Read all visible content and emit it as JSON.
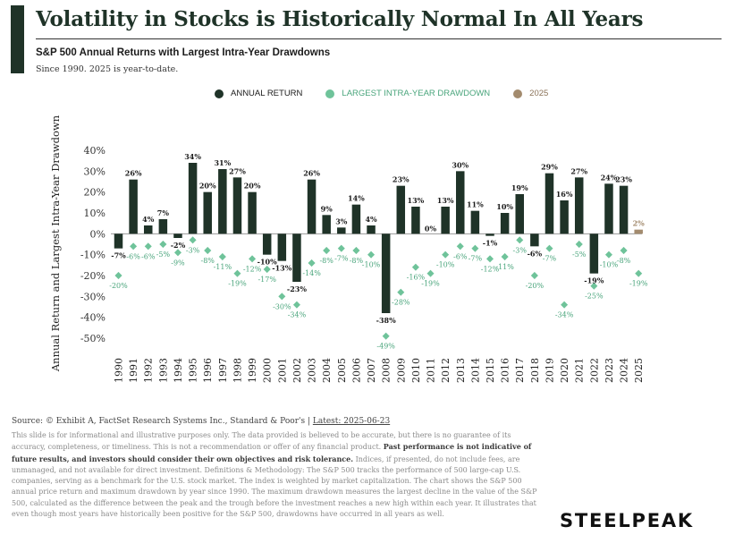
{
  "header": {
    "title": "Volatility in Stocks is Historically Normal In All Years",
    "subtitle": "S&P 500 Annual Returns with Largest Intra-Year Drawdowns",
    "note": "Since 1990. 2025 is year-to-date."
  },
  "legend": {
    "annual_return": "ANNUAL RETURN",
    "drawdown": "LARGEST INTRA-YEAR DRAWDOWN",
    "ytd": "2025"
  },
  "colors": {
    "annual_return": "#1f3328",
    "drawdown": "#6fc39a",
    "ytd": "#a38b6e",
    "accent": "#1f3328"
  },
  "chart_data": {
    "type": "bar",
    "title": "S&P 500 Annual Returns with Largest Intra-Year Drawdowns",
    "ylabel": "Annual Return and Largest Intra-Year Drawdown",
    "xlabel": "",
    "ylim": [
      -50,
      40
    ],
    "yticks": [
      40,
      30,
      20,
      10,
      0,
      -10,
      -20,
      -30,
      -40,
      -50
    ],
    "ytick_labels": [
      "40%",
      "30%",
      "20%",
      "10%",
      "0%",
      "-10%",
      "-20%",
      "-30%",
      "-40%",
      "-50%"
    ],
    "categories": [
      "1990",
      "1991",
      "1992",
      "1993",
      "1994",
      "1995",
      "1996",
      "1997",
      "1998",
      "1999",
      "2000",
      "2001",
      "2002",
      "2003",
      "2004",
      "2005",
      "2006",
      "2007",
      "2008",
      "2009",
      "2010",
      "2011",
      "2012",
      "2013",
      "2014",
      "2015",
      "2016",
      "2017",
      "2018",
      "2019",
      "2020",
      "2021",
      "2022",
      "2023",
      "2024",
      "2025"
    ],
    "series": [
      {
        "name": "Annual Return",
        "values": [
          -7,
          26,
          4,
          7,
          -2,
          34,
          20,
          31,
          27,
          20,
          -10,
          -13,
          -23,
          26,
          9,
          3,
          14,
          4,
          -38,
          23,
          13,
          0,
          13,
          30,
          11,
          -1,
          10,
          19,
          -6,
          29,
          16,
          27,
          -19,
          24,
          23,
          2
        ],
        "labels": [
          "-7%",
          "26%",
          "4%",
          "7%",
          "-2%",
          "34%",
          "20%",
          "31%",
          "27%",
          "20%",
          "-10%",
          "-13%",
          "-23%",
          "26%",
          "9%",
          "3%",
          "14%",
          "4%",
          "-38%",
          "23%",
          "13%",
          "0%",
          "13%",
          "30%",
          "11%",
          "-1%",
          "10%",
          "19%",
          "-6%",
          "29%",
          "16%",
          "27%",
          "-19%",
          "24%",
          "23%",
          "2%"
        ]
      },
      {
        "name": "Largest Intra-Year Drawdown",
        "values": [
          -20,
          -6,
          -6,
          -5,
          -9,
          -3,
          -8,
          -11,
          -19,
          -12,
          -17,
          -30,
          -34,
          -14,
          -8,
          -7,
          -8,
          -10,
          -49,
          -28,
          -16,
          -19,
          -10,
          -6,
          -7,
          -12,
          -11,
          -3,
          -20,
          -7,
          -34,
          -5,
          -25,
          -10,
          -8,
          -19
        ],
        "labels": [
          "-20%",
          "-6%",
          "-6%",
          "-5%",
          "-9%",
          "-3%",
          "-8%",
          "-11%",
          "-19%",
          "-12%",
          "-17%",
          "-30%",
          "-34%",
          "-14%",
          "-8%",
          "-7%",
          "-8%",
          "-10%",
          "-49%",
          "-28%",
          "-16%",
          "-19%",
          "-10%",
          "-6%",
          "-7%",
          "-12%",
          "-11%",
          "-3%",
          "-20%",
          "-7%",
          "-34%",
          "-5%",
          "-25%",
          "-10%",
          "-8%",
          "-19%"
        ]
      }
    ],
    "ytd_category": "2025"
  },
  "footer": {
    "source_text": "Source: © Exhibit A, FactSet Research Systems Inc., Standard & Poor's | ",
    "source_link": "Latest: 2025-06-23",
    "disclaimer_1": "This slide is for informational and illustrative purposes only. The data provided is believed to be accurate, but there is no guarantee of its accuracy, completeness, or timeliness. This is not a recommendation or offer of any financial product. ",
    "disclaimer_bold": "Past performance is not indicative of future results, and investors should consider their own objectives and risk tolerance.",
    "disclaimer_2": " Indices, if presented, do not include fees, are unmanaged, and not available for direct investment. Definitions & Methodology: The S&P 500 tracks the performance of 500 large-cap U.S. companies, serving as a benchmark for the U.S. stock market. The index is weighted by market capitalization. The chart shows the S&P 500 annual price return and maximum drawdown by year since 1990. The maximum drawdown measures the largest decline in the value of the S&P 500, calculated as the difference between the peak and the trough before the investment reaches a new high within each year. It illustrates that even though most years have historically been positive for the S&P 500, drawdowns have occurred in all years as well.",
    "brand": "STEELPEAK"
  }
}
